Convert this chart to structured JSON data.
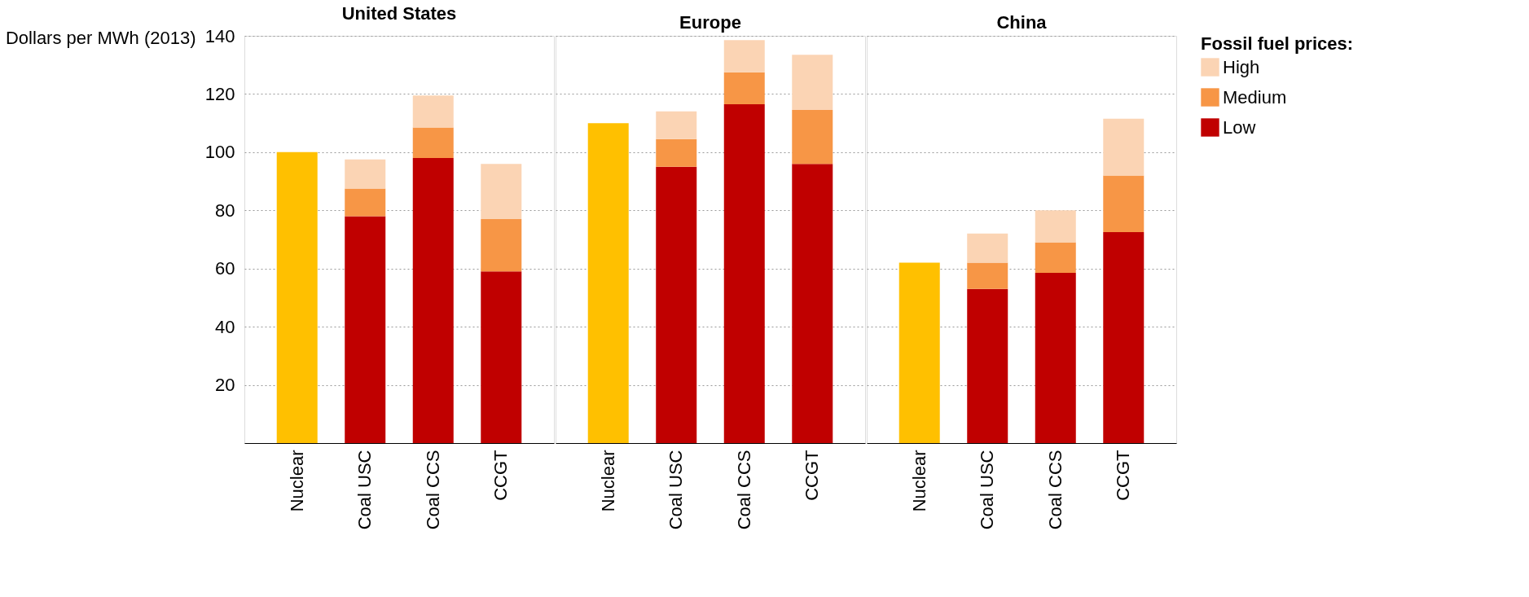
{
  "chart_data": [
    {
      "type": "bar",
      "title": "United States",
      "ylabel": "Dollars per MWh (2013)",
      "categories": [
        "Nuclear",
        "Coal USC",
        "Coal CCS",
        "CCGT"
      ],
      "stacked": true,
      "ylim": [
        0,
        140
      ],
      "yticks": [
        20,
        40,
        60,
        80,
        100,
        120,
        140
      ],
      "grid": "y",
      "legend": false,
      "series": [
        {
          "color": "#ffc000",
          "values": [
            100,
            null,
            null,
            null
          ]
        },
        {
          "color": "#c00000",
          "values": [
            null,
            78,
            98,
            59
          ]
        },
        {
          "color": "#f79646",
          "values": [
            null,
            9.5,
            10.5,
            18
          ]
        },
        {
          "color": "#fbd4b4",
          "values": [
            null,
            10,
            11,
            19
          ]
        }
      ]
    },
    {
      "type": "bar",
      "title": "Europe",
      "categories": [
        "Nuclear",
        "Coal USC",
        "Coal CCS",
        "CCGT"
      ],
      "stacked": true,
      "ylim": [
        0,
        140
      ],
      "yticks": [
        20,
        40,
        60,
        80,
        100,
        120,
        140
      ],
      "grid": "y",
      "legend": false,
      "tick_labels": "x",
      "series": [
        {
          "color": "#ffc000",
          "values": [
            110,
            null,
            null,
            null
          ]
        },
        {
          "color": "#c00000",
          "values": [
            null,
            95,
            116.5,
            96
          ]
        },
        {
          "color": "#f79646",
          "values": [
            null,
            9.5,
            11,
            18.5
          ]
        },
        {
          "color": "#fbd4b4",
          "values": [
            null,
            9.5,
            11,
            19
          ]
        }
      ]
    },
    {
      "type": "bar",
      "title": "China",
      "legend_title": "Fossil fuel prices:",
      "categories": [
        "Nuclear",
        "Coal USC",
        "Coal CCS",
        "CCGT"
      ],
      "stacked": true,
      "ylim": [
        0,
        140
      ],
      "yticks": [
        20,
        40,
        60,
        80,
        100,
        120,
        140
      ],
      "grid": "y",
      "legend": "right",
      "tick_labels": "x",
      "series": [
        {
          "color": "#ffc000",
          "values": [
            62,
            null,
            null,
            null
          ]
        },
        {
          "name": "Low",
          "color": "#c00000",
          "values": [
            null,
            53,
            58.5,
            72.5
          ]
        },
        {
          "name": "Medium",
          "color": "#f79646",
          "values": [
            null,
            9,
            10.5,
            19.5
          ]
        },
        {
          "name": "High",
          "color": "#fbd4b4",
          "values": [
            null,
            10,
            11,
            19.5
          ]
        }
      ]
    }
  ]
}
